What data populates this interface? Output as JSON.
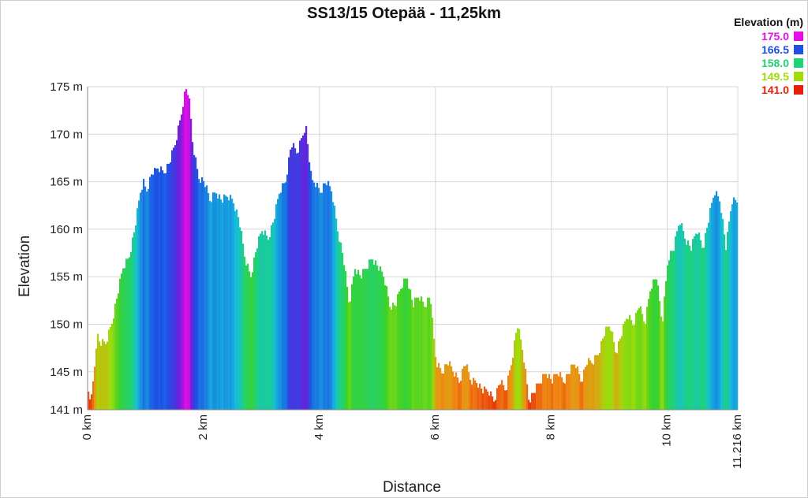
{
  "chart_data": {
    "type": "area",
    "title": "SS13/15 Otepää - 11,25km",
    "xlabel": "Distance",
    "ylabel": "Elevation",
    "x_unit": "km",
    "y_unit": "m",
    "xlim": [
      0,
      11.216
    ],
    "ylim": [
      141,
      175
    ],
    "x_ticks": [
      {
        "value": 0,
        "label": "0 km"
      },
      {
        "value": 2,
        "label": "2 km"
      },
      {
        "value": 4,
        "label": "4 km"
      },
      {
        "value": 6,
        "label": "6 km"
      },
      {
        "value": 8,
        "label": "8 km"
      },
      {
        "value": 10,
        "label": "10 km"
      },
      {
        "value": 11.216,
        "label": "11.216 km"
      }
    ],
    "y_ticks": [
      {
        "value": 141,
        "label": "141 m"
      },
      {
        "value": 145,
        "label": "145 m"
      },
      {
        "value": 150,
        "label": "150 m"
      },
      {
        "value": 155,
        "label": "155 m"
      },
      {
        "value": 160,
        "label": "160 m"
      },
      {
        "value": 165,
        "label": "165 m"
      },
      {
        "value": 170,
        "label": "170 m"
      },
      {
        "value": 175,
        "label": "175 m"
      }
    ],
    "grid": true,
    "legend": {
      "title": "Elevation (m)",
      "placement": "top-right",
      "entries": [
        {
          "label": "175.0",
          "color": "#e60ee6"
        },
        {
          "label": "166.5",
          "color": "#1e50e6"
        },
        {
          "label": "158.0",
          "color": "#1ed278"
        },
        {
          "label": "149.5",
          "color": "#a0dc0a"
        },
        {
          "label": "141.0",
          "color": "#e61e0a"
        }
      ]
    },
    "series": [
      {
        "x": [
          0,
          0.05,
          0.1,
          0.15,
          0.2,
          0.3,
          0.4,
          0.5,
          0.6,
          0.7,
          0.8,
          0.9,
          0.95,
          1.0,
          1.05,
          1.1,
          1.15,
          1.2,
          1.3,
          1.4,
          1.5,
          1.6,
          1.65,
          1.7,
          1.75,
          1.8,
          1.9,
          2.0,
          2.1,
          2.2,
          2.3,
          2.4,
          2.5,
          2.6,
          2.7,
          2.8,
          2.9,
          3.0,
          3.1,
          3.2,
          3.3,
          3.4,
          3.5,
          3.6,
          3.7,
          3.75,
          3.8,
          3.85,
          3.9,
          4.0,
          4.1,
          4.2,
          4.3,
          4.4,
          4.5,
          4.6,
          4.7,
          4.8,
          4.9,
          5.0,
          5.1,
          5.2,
          5.3,
          5.4,
          5.5,
          5.6,
          5.7,
          5.8,
          5.9,
          5.95,
          6.0,
          6.1,
          6.2,
          6.3,
          6.4,
          6.5,
          6.6,
          6.7,
          6.8,
          6.9,
          7.0,
          7.1,
          7.2,
          7.3,
          7.4,
          7.5,
          7.6,
          7.7,
          7.8,
          7.9,
          8.0,
          8.1,
          8.2,
          8.3,
          8.4,
          8.5,
          8.6,
          8.7,
          8.8,
          8.9,
          9.0,
          9.1,
          9.2,
          9.3,
          9.4,
          9.5,
          9.6,
          9.7,
          9.8,
          9.9,
          10.0,
          10.1,
          10.2,
          10.3,
          10.4,
          10.5,
          10.6,
          10.7,
          10.8,
          10.9,
          11.0,
          11.1,
          11.216
        ],
        "y": [
          143,
          142,
          145,
          149,
          148,
          148,
          150,
          153,
          156,
          157,
          160,
          164,
          165,
          164,
          165,
          166,
          166,
          166.5,
          166,
          167,
          169,
          172,
          174,
          175,
          173,
          169,
          165.5,
          165,
          163,
          164,
          163,
          163.5,
          163,
          161,
          157,
          155,
          158,
          160,
          159,
          161,
          164,
          165,
          169,
          168,
          170,
          171,
          168,
          165,
          165,
          164,
          165,
          164,
          160,
          157,
          152,
          156,
          155,
          156,
          157,
          156,
          155,
          152,
          152,
          154,
          155,
          152,
          153,
          152,
          153,
          149,
          146,
          145,
          146,
          145,
          144,
          146,
          144,
          144,
          143,
          143,
          142,
          144,
          143,
          146,
          150,
          147,
          142,
          143,
          144,
          145,
          144,
          145,
          144,
          145,
          146,
          144,
          146,
          146,
          147,
          149,
          150,
          147,
          149,
          151,
          150,
          152,
          150,
          154,
          155,
          150,
          157,
          158,
          161,
          159,
          158,
          160,
          158,
          161,
          164,
          163,
          158,
          163,
          163
        ]
      }
    ]
  }
}
